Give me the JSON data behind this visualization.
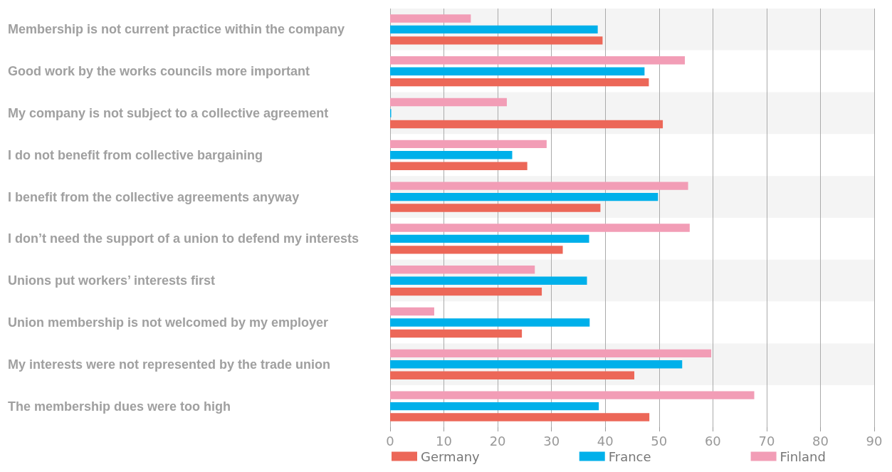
{
  "chart_data": {
    "type": "bar",
    "orientation": "horizontal",
    "categories": [
      "Membership is not current practice within the company",
      "Good work by the works councils more important",
      "My company is not subject to a collective agreement",
      "I do not benefit from collective bargaining",
      "I benefit from the collective agreements anyway",
      "I don’t need the support of a union to defend my interests",
      "Unions put workers’ interests first",
      "Union membership is not welcomed by my employer",
      "My interests were not represented by the trade union",
      "The membership dues were too high"
    ],
    "series": [
      {
        "name": "Germany",
        "color": "#ec6758",
        "values": [
          39.5,
          48.1,
          50.7,
          25.5,
          39.1,
          32.1,
          28.2,
          24.5,
          45.4,
          48.2
        ]
      },
      {
        "name": "France",
        "color": "#00b0ea",
        "values": [
          38.6,
          47.3,
          0.2,
          22.7,
          49.8,
          37.0,
          36.6,
          37.1,
          54.3,
          38.8
        ]
      },
      {
        "name": "Finland",
        "color": "#f29db6",
        "values": [
          15.0,
          54.8,
          21.7,
          29.1,
          55.4,
          55.7,
          26.9,
          8.2,
          59.7,
          67.7
        ]
      }
    ],
    "xlim": [
      0,
      90
    ],
    "xticks": [
      0,
      10,
      20,
      30,
      40,
      50,
      60,
      70,
      80,
      90
    ],
    "grid": "x",
    "legend": "bottom"
  }
}
